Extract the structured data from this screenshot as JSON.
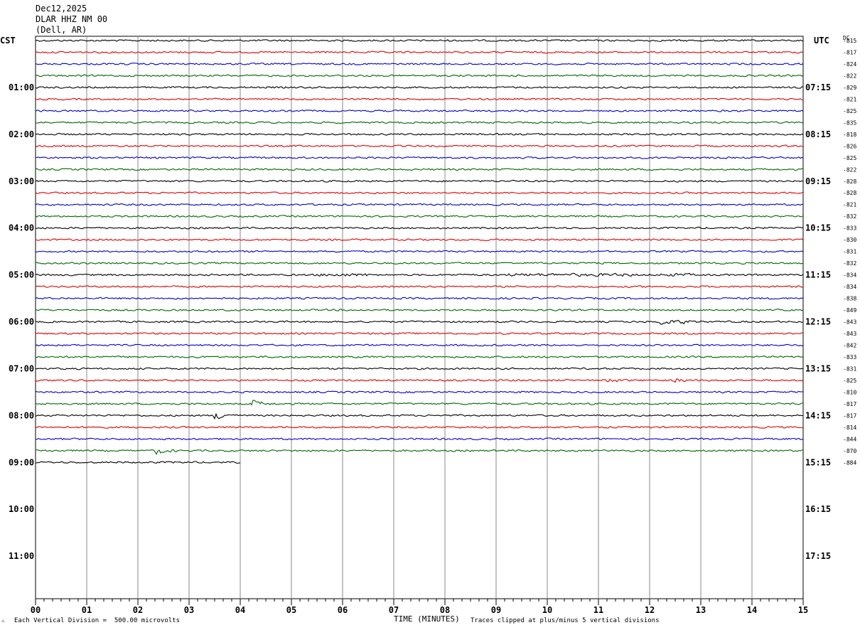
{
  "header": {
    "date": "Dec12,2025",
    "station": "DLAR HHZ NM 00",
    "location": "(Dell, AR)"
  },
  "left_axis_label": "CST",
  "right_axis_label": "UTC",
  "dc_label": "DC",
  "footer": {
    "scale_note": "Each Vertical Division =  500.00 microvolts",
    "xlabel": "TIME (MINUTES)",
    "clip_note": "Traces clipped at plus/minus 5 vertical divisions"
  },
  "colors": {
    "trace": [
      "#000000",
      "#dd0000",
      "#0000cc",
      "#006600"
    ],
    "grid": "#888888"
  },
  "chart_data": {
    "type": "line",
    "subtype": "helicorder",
    "x_ticks": [
      "00",
      "01",
      "02",
      "03",
      "04",
      "05",
      "06",
      "07",
      "08",
      "09",
      "10",
      "11",
      "12",
      "13",
      "14",
      "15"
    ],
    "xlim": [
      0,
      15
    ],
    "left_hour_labels": [
      "01:00",
      "02:00",
      "03:00",
      "04:00",
      "05:00",
      "06:00",
      "07:00",
      "08:00",
      "09:00",
      "10:00",
      "11:00"
    ],
    "right_hour_labels": [
      "07:15",
      "08:15",
      "09:15",
      "10:15",
      "11:15",
      "12:15",
      "13:15",
      "14:15",
      "15:15",
      "16:15",
      "17:15"
    ],
    "total_rows": 48,
    "rows_per_hour": 4,
    "traces": [
      {
        "row": 0,
        "dc": "815",
        "end": 15
      },
      {
        "row": 1,
        "dc": "817",
        "end": 15
      },
      {
        "row": 2,
        "dc": "824",
        "end": 15
      },
      {
        "row": 3,
        "dc": "822",
        "end": 15
      },
      {
        "row": 4,
        "dc": "829",
        "end": 15
      },
      {
        "row": 5,
        "dc": "821",
        "end": 15
      },
      {
        "row": 6,
        "dc": "825",
        "end": 15
      },
      {
        "row": 7,
        "dc": "835",
        "end": 15
      },
      {
        "row": 8,
        "dc": "818",
        "end": 15
      },
      {
        "row": 9,
        "dc": "826",
        "end": 15
      },
      {
        "row": 10,
        "dc": "825",
        "end": 15
      },
      {
        "row": 11,
        "dc": "822",
        "end": 15
      },
      {
        "row": 12,
        "dc": "828",
        "end": 15
      },
      {
        "row": 13,
        "dc": "828",
        "end": 15
      },
      {
        "row": 14,
        "dc": "821",
        "end": 15
      },
      {
        "row": 15,
        "dc": "832",
        "end": 15
      },
      {
        "row": 16,
        "dc": "833",
        "end": 15
      },
      {
        "row": 17,
        "dc": "830",
        "end": 15
      },
      {
        "row": 18,
        "dc": "831",
        "end": 15
      },
      {
        "row": 19,
        "dc": "832",
        "end": 15
      },
      {
        "row": 20,
        "dc": "834",
        "end": 15,
        "bursts": [
          [
            5.5,
            1.0
          ],
          [
            9.2,
            2.5
          ],
          [
            12.2,
            0.6
          ]
        ]
      },
      {
        "row": 21,
        "dc": "834",
        "end": 15
      },
      {
        "row": 22,
        "dc": "838",
        "end": 15
      },
      {
        "row": 23,
        "dc": "849",
        "end": 15
      },
      {
        "row": 24,
        "dc": "843",
        "end": 15,
        "events": [
          [
            12.2,
            1.8
          ],
          [
            12.6,
            1.0
          ]
        ]
      },
      {
        "row": 25,
        "dc": "843",
        "end": 15
      },
      {
        "row": 26,
        "dc": "842",
        "end": 15
      },
      {
        "row": 27,
        "dc": "833",
        "end": 15
      },
      {
        "row": 28,
        "dc": "831",
        "end": 15
      },
      {
        "row": 29,
        "dc": "825",
        "end": 15,
        "events": [
          [
            11.2,
            1.0
          ],
          [
            12.5,
            0.8
          ]
        ]
      },
      {
        "row": 30,
        "dc": "810",
        "end": 15
      },
      {
        "row": 31,
        "dc": "817",
        "end": 15,
        "events": [
          [
            4.25,
            1.8
          ]
        ]
      },
      {
        "row": 32,
        "dc": "817",
        "end": 15,
        "events": [
          [
            3.55,
            2.0
          ]
        ]
      },
      {
        "row": 33,
        "dc": "814",
        "end": 15
      },
      {
        "row": 34,
        "dc": "844",
        "end": 15
      },
      {
        "row": 35,
        "dc": "870",
        "end": 15,
        "events": [
          [
            2.35,
            1.8
          ]
        ]
      },
      {
        "row": 36,
        "dc": "884",
        "end": 4
      }
    ]
  }
}
